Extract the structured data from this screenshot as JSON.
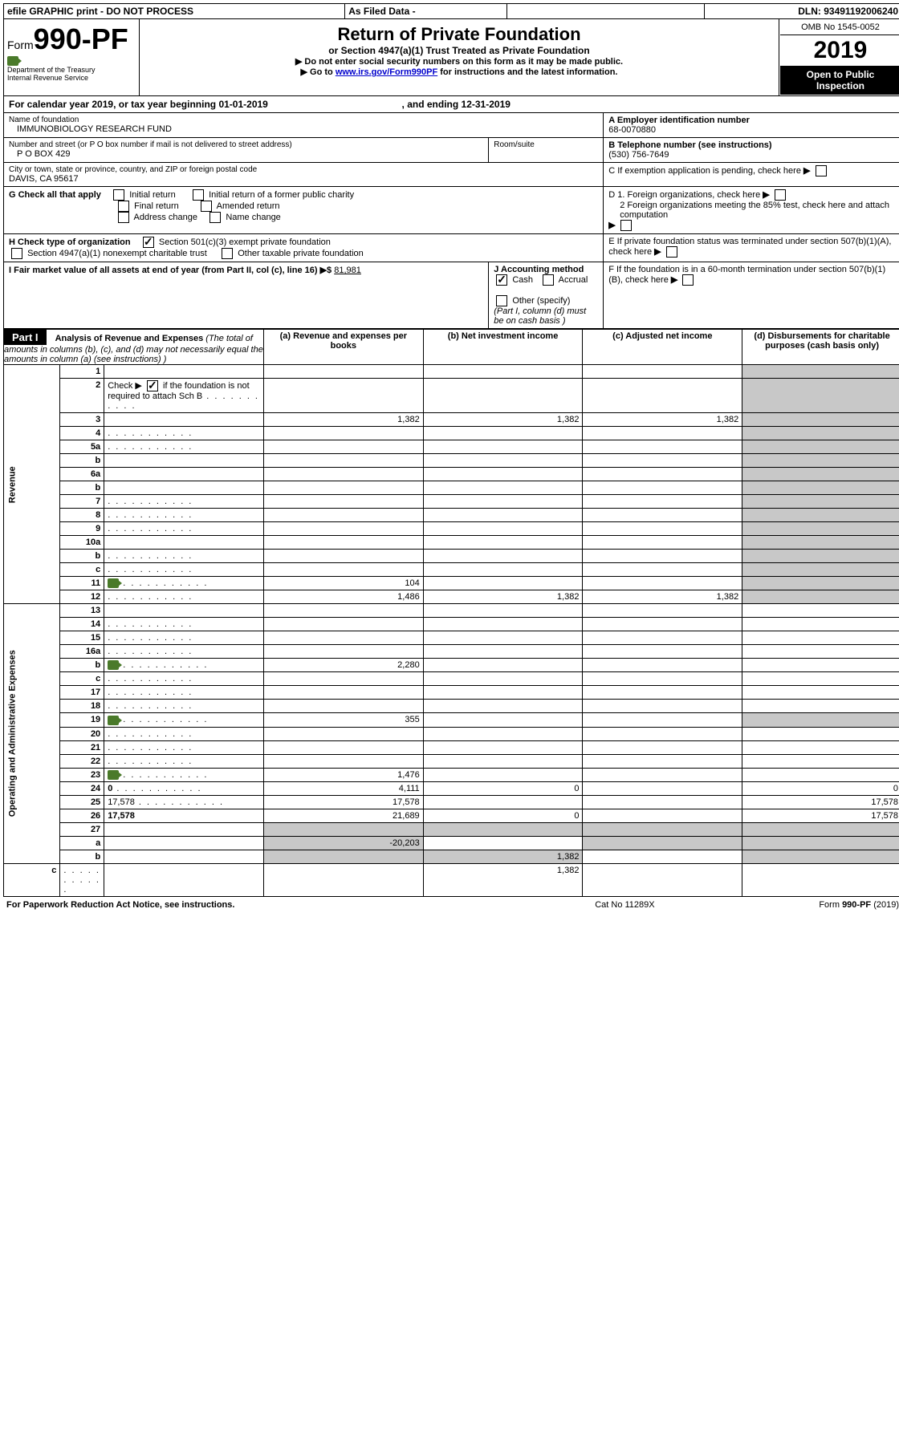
{
  "topbar": {
    "efile": "efile GRAPHIC print - DO NOT PROCESS",
    "asfiled": "As Filed Data -",
    "dln_label": "DLN:",
    "dln": "93491192006240"
  },
  "header": {
    "form_prefix": "Form",
    "form_no": "990-PF",
    "dept1": "Department of the Treasury",
    "dept2": "Internal Revenue Service",
    "title": "Return of Private Foundation",
    "subtitle": "or Section 4947(a)(1) Trust Treated as Private Foundation",
    "warn1": "▶ Do not enter social security numbers on this form as it may be made public.",
    "warn2_pre": "▶ Go to ",
    "warn2_link": "www.irs.gov/Form990PF",
    "warn2_post": " for instructions and the latest information.",
    "omb": "OMB No 1545-0052",
    "year": "2019",
    "open": "Open to Public Inspection"
  },
  "calendar": {
    "pre": "For calendar year 2019, or tax year beginning ",
    "begin": "01-01-2019",
    "mid": ", and ending ",
    "end": "12-31-2019"
  },
  "nameblock": {
    "name_label": "Name of foundation",
    "name": "IMMUNOBIOLOGY RESEARCH FUND",
    "addr_label": "Number and street (or P O  box number if mail is not delivered to street address)",
    "addr": "P O BOX 429",
    "room_label": "Room/suite",
    "city_label": "City or town, state or province, country, and ZIP or foreign postal code",
    "city": "DAVIS, CA  95617",
    "a_label": "A Employer identification number",
    "a_val": "68-0070880",
    "b_label": "B Telephone number (see instructions)",
    "b_val": "(530) 756-7649",
    "c_label": "C If exemption application is pending, check here",
    "d1": "D 1. Foreign organizations, check here",
    "d2": "2  Foreign organizations meeting the 85% test, check here and attach computation",
    "e": "E  If private foundation status was terminated under section 507(b)(1)(A), check here",
    "f": "F  If the foundation is in a 60-month termination under section 507(b)(1)(B), check here"
  },
  "g": {
    "label": "G Check all that apply",
    "opts": [
      "Initial return",
      "Initial return of a former public charity",
      "Final return",
      "Amended return",
      "Address change",
      "Name change"
    ]
  },
  "h": {
    "label": "H Check type of organization",
    "opt1": "Section 501(c)(3) exempt private foundation",
    "opt2": "Section 4947(a)(1) nonexempt charitable trust",
    "opt3": "Other taxable private foundation"
  },
  "i": {
    "label": "I Fair market value of all assets at end of year (from Part II, col  (c), line 16)",
    "arrow": "▶$",
    "val": "81,981"
  },
  "j": {
    "label": "J Accounting method",
    "cash": "Cash",
    "accrual": "Accrual",
    "other": "Other (specify)",
    "note": "(Part I, column (d) must be on cash basis )"
  },
  "part1": {
    "label": "Part I",
    "title": "Analysis of Revenue and Expenses",
    "title_note": "(The total of amounts in columns (b), (c), and (d) may not necessarily equal the amounts in column (a) (see instructions) )",
    "colA": "(a)   Revenue and expenses per books",
    "colB": "(b)  Net investment income",
    "colC": "(c)  Adjusted net income",
    "colD": "(d)  Disbursements for charitable purposes (cash basis only)"
  },
  "sections": {
    "revenue": "Revenue",
    "opadmin": "Operating and Administrative Expenses"
  },
  "rows": [
    {
      "n": "1",
      "d": "",
      "a": "",
      "b": "",
      "c": ""
    },
    {
      "n": "2",
      "d": "",
      "a": "",
      "b": "",
      "c": "",
      "dots": true
    },
    {
      "n": "3",
      "d": "",
      "a": "1,382",
      "b": "1,382",
      "c": "1,382"
    },
    {
      "n": "4",
      "d": "",
      "a": "",
      "b": "",
      "c": "",
      "dots": true
    },
    {
      "n": "5a",
      "d": "",
      "a": "",
      "b": "",
      "c": "",
      "dots": true
    },
    {
      "n": "b",
      "d": "",
      "a": "",
      "b": "",
      "c": ""
    },
    {
      "n": "6a",
      "d": "",
      "a": "",
      "b": "",
      "c": ""
    },
    {
      "n": "b",
      "d": "",
      "a": "",
      "b": "",
      "c": ""
    },
    {
      "n": "7",
      "d": "",
      "a": "",
      "b": "",
      "c": "",
      "dots": true
    },
    {
      "n": "8",
      "d": "",
      "a": "",
      "b": "",
      "c": "",
      "dots": true
    },
    {
      "n": "9",
      "d": "",
      "a": "",
      "b": "",
      "c": "",
      "dots": true
    },
    {
      "n": "10a",
      "d": "",
      "a": "",
      "b": "",
      "c": ""
    },
    {
      "n": "b",
      "d": "",
      "a": "",
      "b": "",
      "c": "",
      "dots": true
    },
    {
      "n": "c",
      "d": "",
      "a": "",
      "b": "",
      "c": "",
      "dots": true
    },
    {
      "n": "11",
      "d": "",
      "a": "104",
      "b": "",
      "c": "",
      "dots": true,
      "icon": true
    },
    {
      "n": "12",
      "d": "",
      "a": "1,486",
      "b": "1,382",
      "c": "1,382",
      "dots": true,
      "bold": true
    },
    {
      "n": "13",
      "d": "",
      "a": "",
      "b": "",
      "c": ""
    },
    {
      "n": "14",
      "d": "",
      "a": "",
      "b": "",
      "c": "",
      "dots": true
    },
    {
      "n": "15",
      "d": "",
      "a": "",
      "b": "",
      "c": "",
      "dots": true
    },
    {
      "n": "16a",
      "d": "",
      "a": "",
      "b": "",
      "c": "",
      "dots": true
    },
    {
      "n": "b",
      "d": "",
      "a": "2,280",
      "b": "",
      "c": "",
      "dots": true,
      "icon": true
    },
    {
      "n": "c",
      "d": "",
      "a": "",
      "b": "",
      "c": "",
      "dots": true
    },
    {
      "n": "17",
      "d": "",
      "a": "",
      "b": "",
      "c": "",
      "dots": true
    },
    {
      "n": "18",
      "d": "",
      "a": "",
      "b": "",
      "c": "",
      "dots": true
    },
    {
      "n": "19",
      "d": "",
      "a": "355",
      "b": "",
      "c": "",
      "dots": true,
      "icon": true
    },
    {
      "n": "20",
      "d": "",
      "a": "",
      "b": "",
      "c": "",
      "dots": true
    },
    {
      "n": "21",
      "d": "",
      "a": "",
      "b": "",
      "c": "",
      "dots": true
    },
    {
      "n": "22",
      "d": "",
      "a": "",
      "b": "",
      "c": "",
      "dots": true
    },
    {
      "n": "23",
      "d": "",
      "a": "1,476",
      "b": "",
      "c": "",
      "dots": true,
      "icon": true
    },
    {
      "n": "24",
      "d": "0",
      "a": "4,111",
      "b": "0",
      "c": "",
      "dots": true,
      "bold": true
    },
    {
      "n": "25",
      "d": "17,578",
      "a": "17,578",
      "b": "",
      "c": "",
      "dots": true
    },
    {
      "n": "26",
      "d": "17,578",
      "a": "21,689",
      "b": "0",
      "c": "",
      "bold": true
    },
    {
      "n": "27",
      "d": "",
      "a": "",
      "b": "",
      "c": ""
    },
    {
      "n": "a",
      "d": "",
      "a": "-20,203",
      "b": "",
      "c": "",
      "bold": true
    },
    {
      "n": "b",
      "d": "",
      "a": "",
      "b": "1,382",
      "c": "",
      "bold": true
    },
    {
      "n": "c",
      "d": "",
      "a": "",
      "b": "",
      "c": "1,382",
      "bold": true,
      "dots": true
    }
  ],
  "shading": {
    "row2_check_desc": "Check ▶",
    "row2_check_note": "if the foundation is not required to attach Sch  B"
  },
  "footer": {
    "left": "For Paperwork Reduction Act Notice, see instructions.",
    "mid": "Cat  No  11289X",
    "right_pre": "Form ",
    "right_bold": "990-PF",
    "right_post": " (2019)"
  }
}
